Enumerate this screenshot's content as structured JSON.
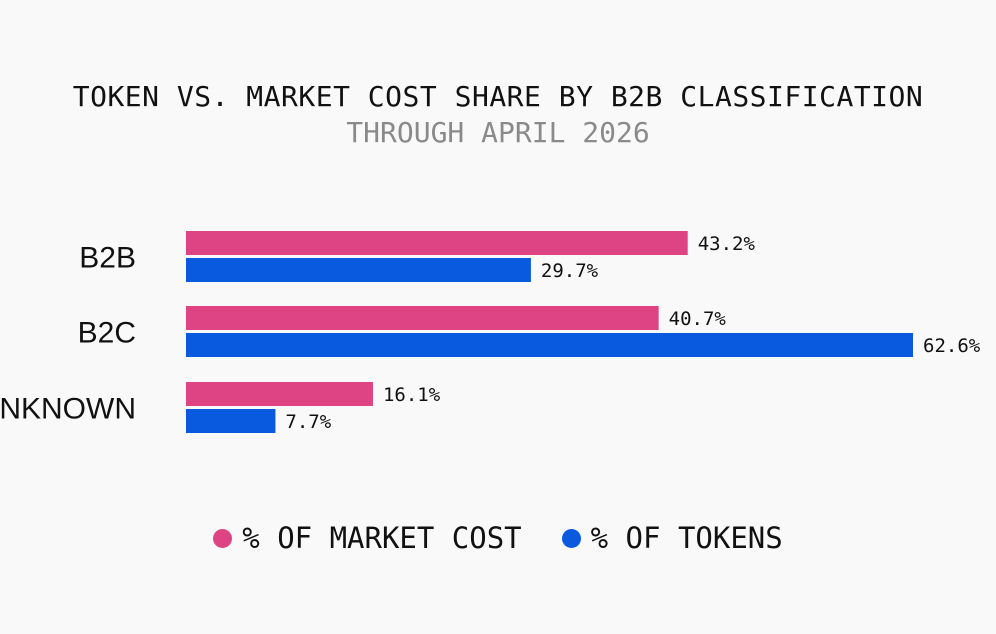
{
  "title": "TOKEN VS. MARKET COST SHARE BY B2B CLASSIFICATION",
  "subtitle": "THROUGH APRIL 2026",
  "chart_data": {
    "type": "bar",
    "orientation": "horizontal",
    "title": "TOKEN VS. MARKET COST SHARE BY B2B CLASSIFICATION",
    "subtitle": "THROUGH APRIL 2026",
    "categories": [
      "B2B",
      "B2C",
      "UNKNOWN"
    ],
    "series": [
      {
        "name": "% OF MARKET COST",
        "color": "#de4484",
        "values": [
          43.2,
          40.7,
          16.1
        ],
        "labels": [
          "43.2%",
          "40.7%",
          "16.1%"
        ]
      },
      {
        "name": "% OF TOKENS",
        "color": "#0a5ae0",
        "values": [
          29.7,
          62.6,
          7.7
        ],
        "labels": [
          "29.7%",
          "62.6%",
          "7.7%"
        ]
      }
    ],
    "xlim": [
      0,
      62.6
    ],
    "grid": false,
    "legend_position": "bottom"
  },
  "legend": {
    "items": [
      {
        "label": "% OF MARKET COST",
        "color": "#de4484"
      },
      {
        "label": "% OF TOKENS",
        "color": "#0a5ae0"
      }
    ]
  }
}
